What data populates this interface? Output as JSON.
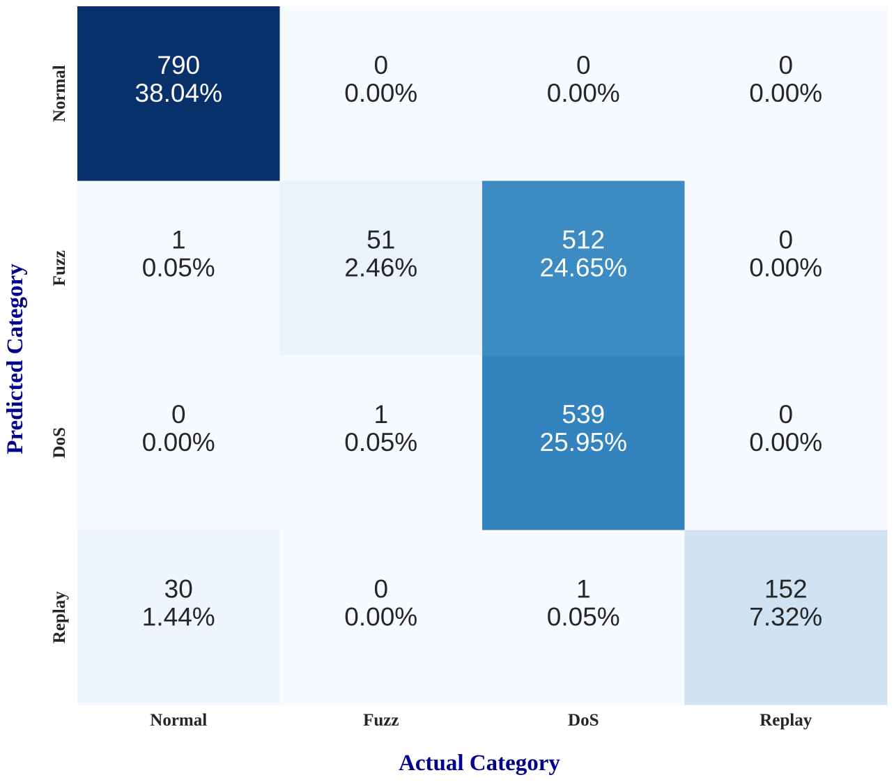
{
  "chart_data": {
    "type": "heatmap",
    "title": "",
    "xlabel": "Actual Category",
    "ylabel": "Predicted Category",
    "x_categories": [
      "Normal",
      "Fuzz",
      "DoS",
      "Replay"
    ],
    "y_categories": [
      "Normal",
      "Fuzz",
      "DoS",
      "Replay"
    ],
    "values": [
      [
        790,
        0,
        0,
        0
      ],
      [
        1,
        51,
        512,
        0
      ],
      [
        0,
        1,
        539,
        0
      ],
      [
        30,
        0,
        1,
        152
      ]
    ],
    "percentages": [
      [
        "38.04%",
        "0.00%",
        "0.00%",
        "0.00%"
      ],
      [
        "0.05%",
        "2.46%",
        "24.65%",
        "0.00%"
      ],
      [
        "0.00%",
        "0.05%",
        "25.95%",
        "0.00%"
      ],
      [
        "1.44%",
        "0.00%",
        "0.05%",
        "7.32%"
      ]
    ],
    "colormap": "Blues",
    "axis_label_color": "#00008b",
    "colorbar": false,
    "grid": false
  }
}
